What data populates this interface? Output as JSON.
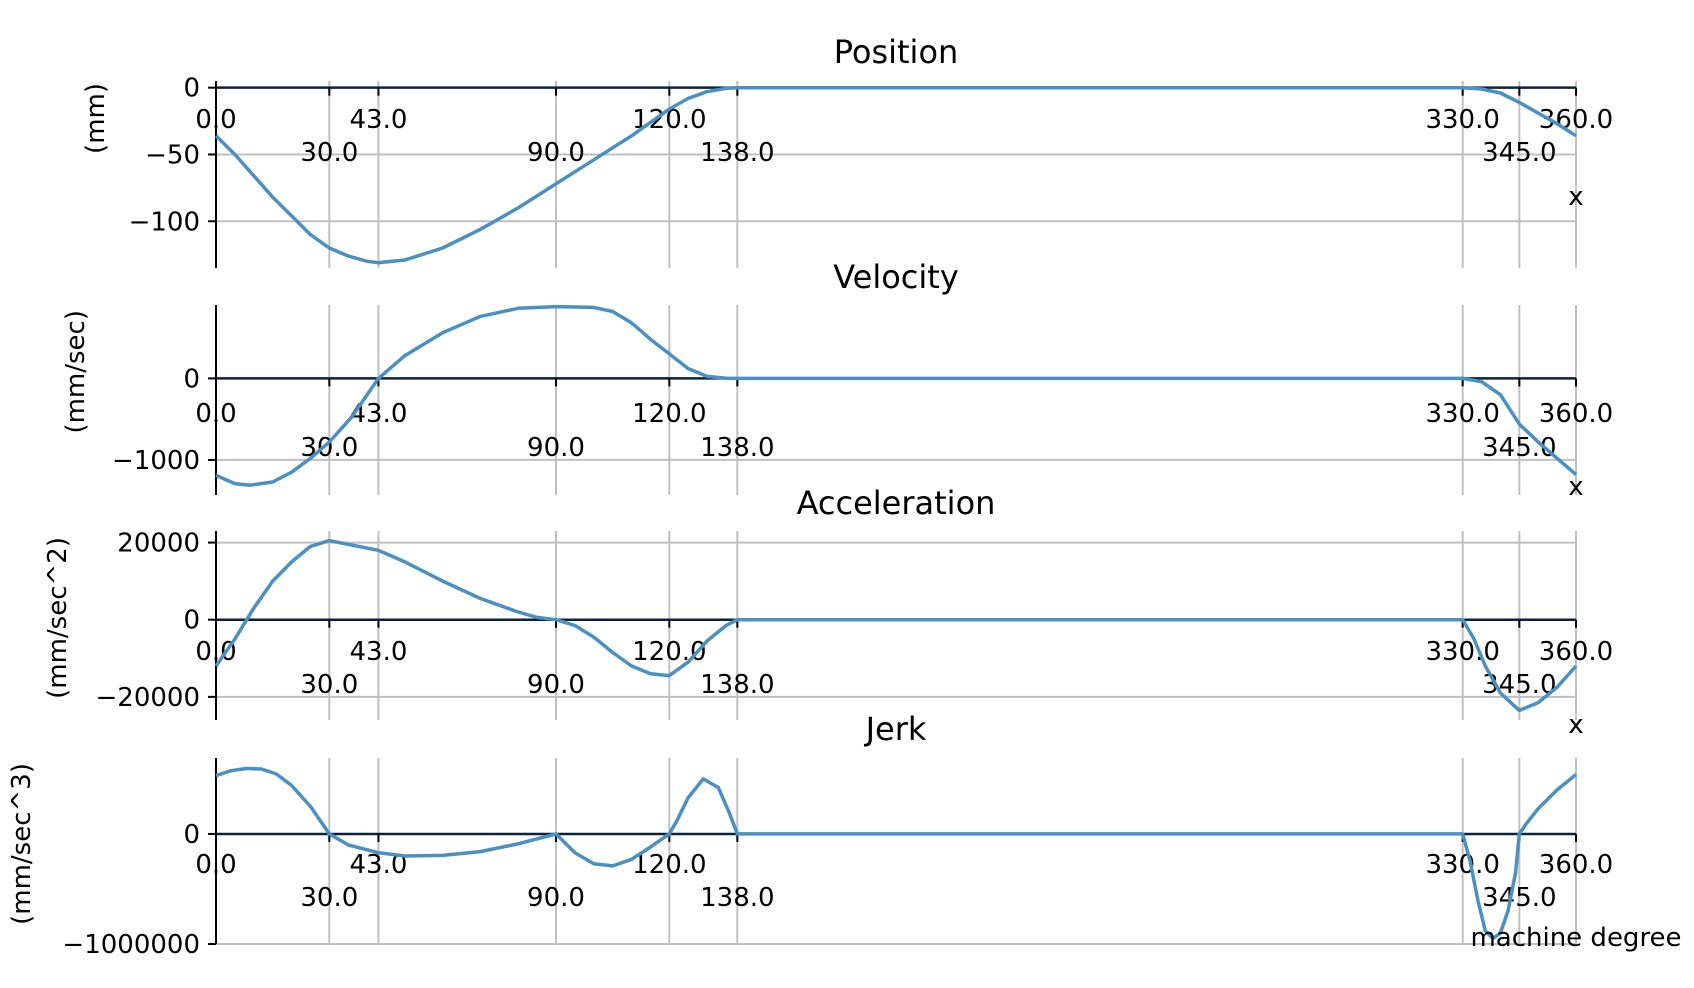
{
  "colors": {
    "curve": "#4a90c2",
    "zero_line": "#0b2239",
    "grid": "#c0c0c0",
    "axis": "#000000"
  },
  "chart_data": [
    {
      "type": "line",
      "title": "Position",
      "ylabel": "(mm)",
      "xlabel": "x",
      "xlim": [
        0,
        360
      ],
      "ylim": [
        -135,
        5
      ],
      "yticks": [
        0,
        -50,
        -100
      ],
      "ytick_labels": [
        "0",
        "−50",
        "−100"
      ],
      "xticks": [
        0,
        30,
        43,
        90,
        120,
        138,
        330,
        345,
        360
      ],
      "xtick_labels": [
        "0.0",
        "30.0",
        "43.0",
        "90.0",
        "120.0",
        "138.0",
        "330.0",
        "345.0",
        "360.0"
      ],
      "grid": true,
      "x": [
        0,
        5,
        10,
        15,
        20,
        25,
        30,
        35,
        40,
        43,
        50,
        60,
        70,
        80,
        90,
        100,
        110,
        115,
        120,
        125,
        130,
        135,
        138,
        200,
        300,
        330,
        335,
        340,
        345,
        350,
        355,
        360
      ],
      "y": [
        -36,
        -50,
        -66,
        -82,
        -96,
        -110,
        -120,
        -126,
        -130,
        -131,
        -129,
        -120,
        -106,
        -90,
        -72,
        -54,
        -36,
        -26,
        -16,
        -8,
        -3,
        -0.5,
        0,
        0,
        0,
        0,
        -1,
        -4,
        -11,
        -19,
        -27,
        -36
      ]
    },
    {
      "type": "line",
      "title": "Velocity",
      "ylabel": "(mm/sec)",
      "xlabel": "x",
      "xlim": [
        0,
        360
      ],
      "ylim": [
        -1430,
        900
      ],
      "yticks": [
        0,
        -1000
      ],
      "ytick_labels": [
        "0",
        "−1000"
      ],
      "xticks": [
        0,
        30,
        43,
        90,
        120,
        138,
        330,
        345,
        360
      ],
      "xtick_labels": [
        "0.0",
        "30.0",
        "43.0",
        "90.0",
        "120.0",
        "138.0",
        "330.0",
        "345.0",
        "360.0"
      ],
      "grid": true,
      "x": [
        0,
        5,
        9,
        15,
        20,
        25,
        30,
        36,
        43,
        50,
        60,
        70,
        80,
        90,
        100,
        105,
        110,
        115,
        120,
        125,
        130,
        135,
        138,
        200,
        300,
        330,
        335,
        340,
        345,
        350,
        355,
        360
      ],
      "y": [
        -1190,
        -1290,
        -1310,
        -1270,
        -1150,
        -980,
        -780,
        -470,
        0,
        280,
        560,
        760,
        860,
        880,
        870,
        820,
        680,
        480,
        300,
        120,
        25,
        2,
        0,
        0,
        0,
        0,
        -40,
        -200,
        -560,
        -780,
        -980,
        -1180
      ]
    },
    {
      "type": "line",
      "title": "Acceleration",
      "ylabel": "(mm/sec^2)",
      "xlabel": "x",
      "xlim": [
        0,
        360
      ],
      "ylim": [
        -26000,
        23000
      ],
      "yticks": [
        20000,
        0,
        -20000
      ],
      "ytick_labels": [
        "20000",
        "0",
        "−20000"
      ],
      "xticks": [
        0,
        30,
        43,
        90,
        120,
        138,
        330,
        345,
        360
      ],
      "xtick_labels": [
        "0.0",
        "30.0",
        "43.0",
        "90.0",
        "120.0",
        "138.0",
        "330.0",
        "345.0",
        "360.0"
      ],
      "grid": true,
      "x": [
        0,
        5,
        10,
        15,
        20,
        25,
        30,
        43,
        50,
        60,
        70,
        80,
        85,
        90,
        95,
        100,
        105,
        110,
        115,
        120,
        125,
        130,
        135,
        138,
        200,
        300,
        330,
        333,
        336,
        340,
        345,
        350,
        355,
        360
      ],
      "y": [
        -12000,
        -5000,
        3000,
        10000,
        15000,
        19000,
        20500,
        18000,
        15000,
        10000,
        5500,
        2000,
        600,
        0,
        -1500,
        -4500,
        -8500,
        -12000,
        -14000,
        -14500,
        -11000,
        -5500,
        -1500,
        0,
        0,
        0,
        0,
        -5000,
        -12000,
        -19000,
        -23500,
        -21500,
        -17500,
        -12000
      ]
    },
    {
      "type": "line",
      "title": "Jerk",
      "ylabel": "(mm/sec^3)",
      "xlabel": "machine degree",
      "xlim": [
        0,
        360
      ],
      "ylim": [
        -1000000,
        690000
      ],
      "yticks": [
        0,
        -1000000
      ],
      "ytick_labels": [
        "0",
        "−1000000"
      ],
      "xticks": [
        0,
        30,
        43,
        90,
        120,
        138,
        330,
        345,
        360
      ],
      "xtick_labels": [
        "0.0",
        "30.0",
        "43.0",
        "90.0",
        "120.0",
        "138.0",
        "330.0",
        "345.0",
        "360.0"
      ],
      "grid": true,
      "x": [
        0,
        4,
        8,
        12,
        16,
        20,
        25,
        30,
        35,
        43,
        50,
        60,
        70,
        80,
        90,
        95,
        100,
        105,
        110,
        115,
        120,
        122,
        125,
        129,
        133,
        136,
        138,
        200,
        300,
        330,
        332,
        334,
        336,
        338,
        340,
        342,
        344,
        345,
        347,
        350,
        355,
        360
      ],
      "y": [
        530000,
        575000,
        595000,
        590000,
        545000,
        440000,
        250000,
        0,
        -100000,
        -170000,
        -200000,
        -195000,
        -160000,
        -90000,
        0,
        -170000,
        -270000,
        -290000,
        -230000,
        -120000,
        0,
        120000,
        330000,
        500000,
        420000,
        180000,
        0,
        0,
        0,
        0,
        -250000,
        -600000,
        -880000,
        -950000,
        -900000,
        -700000,
        -350000,
        0,
        100000,
        230000,
        400000,
        540000
      ]
    }
  ]
}
